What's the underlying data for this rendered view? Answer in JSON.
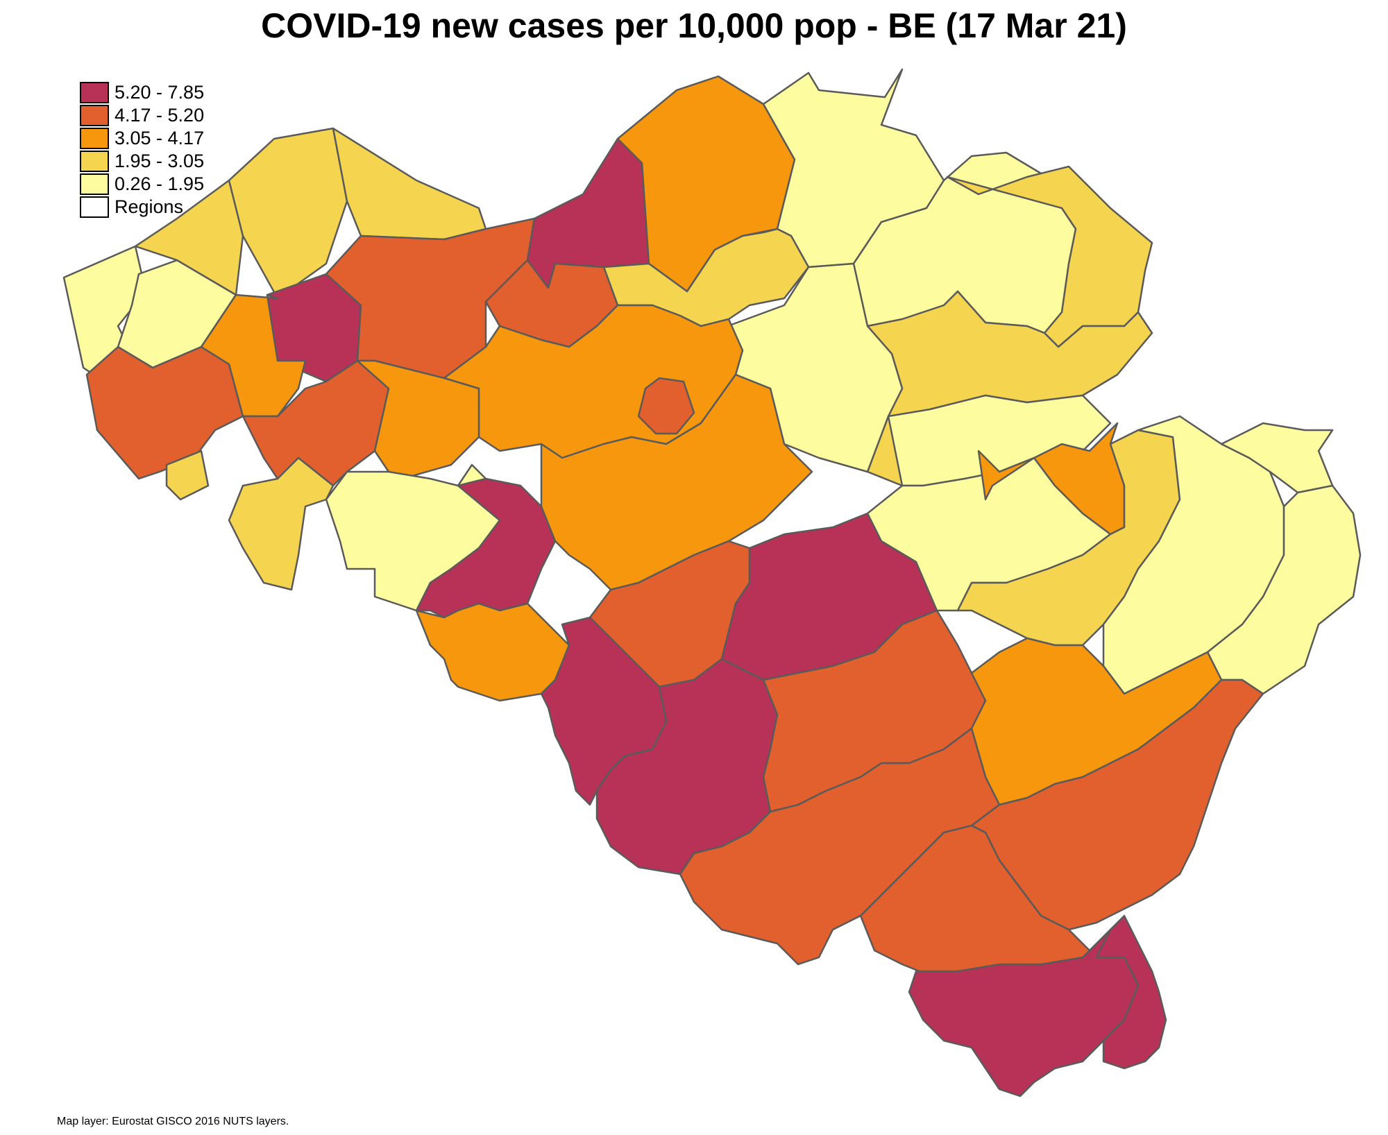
{
  "title": "COVID-19 new cases per 10,000 pop - BE (17 Mar 21)",
  "legend": [
    {
      "label": "5.20 - 7.85",
      "color": "#B83258"
    },
    {
      "label": "4.17 - 5.20",
      "color": "#E25F2E"
    },
    {
      "label": "3.05 - 4.17",
      "color": "#F7970D"
    },
    {
      "label": "1.95 - 3.05",
      "color": "#F5D54F"
    },
    {
      "label": "0.26 - 1.95",
      "color": "#FDFDA0"
    },
    {
      "label": "Regions",
      "color": "#FFFFFF"
    }
  ],
  "source": "Map layer: Eurostat GISCO 2016 NUTS layers.",
  "colors": {
    "border_internal": "#5A5A5A",
    "border_outline": "#000000"
  }
}
